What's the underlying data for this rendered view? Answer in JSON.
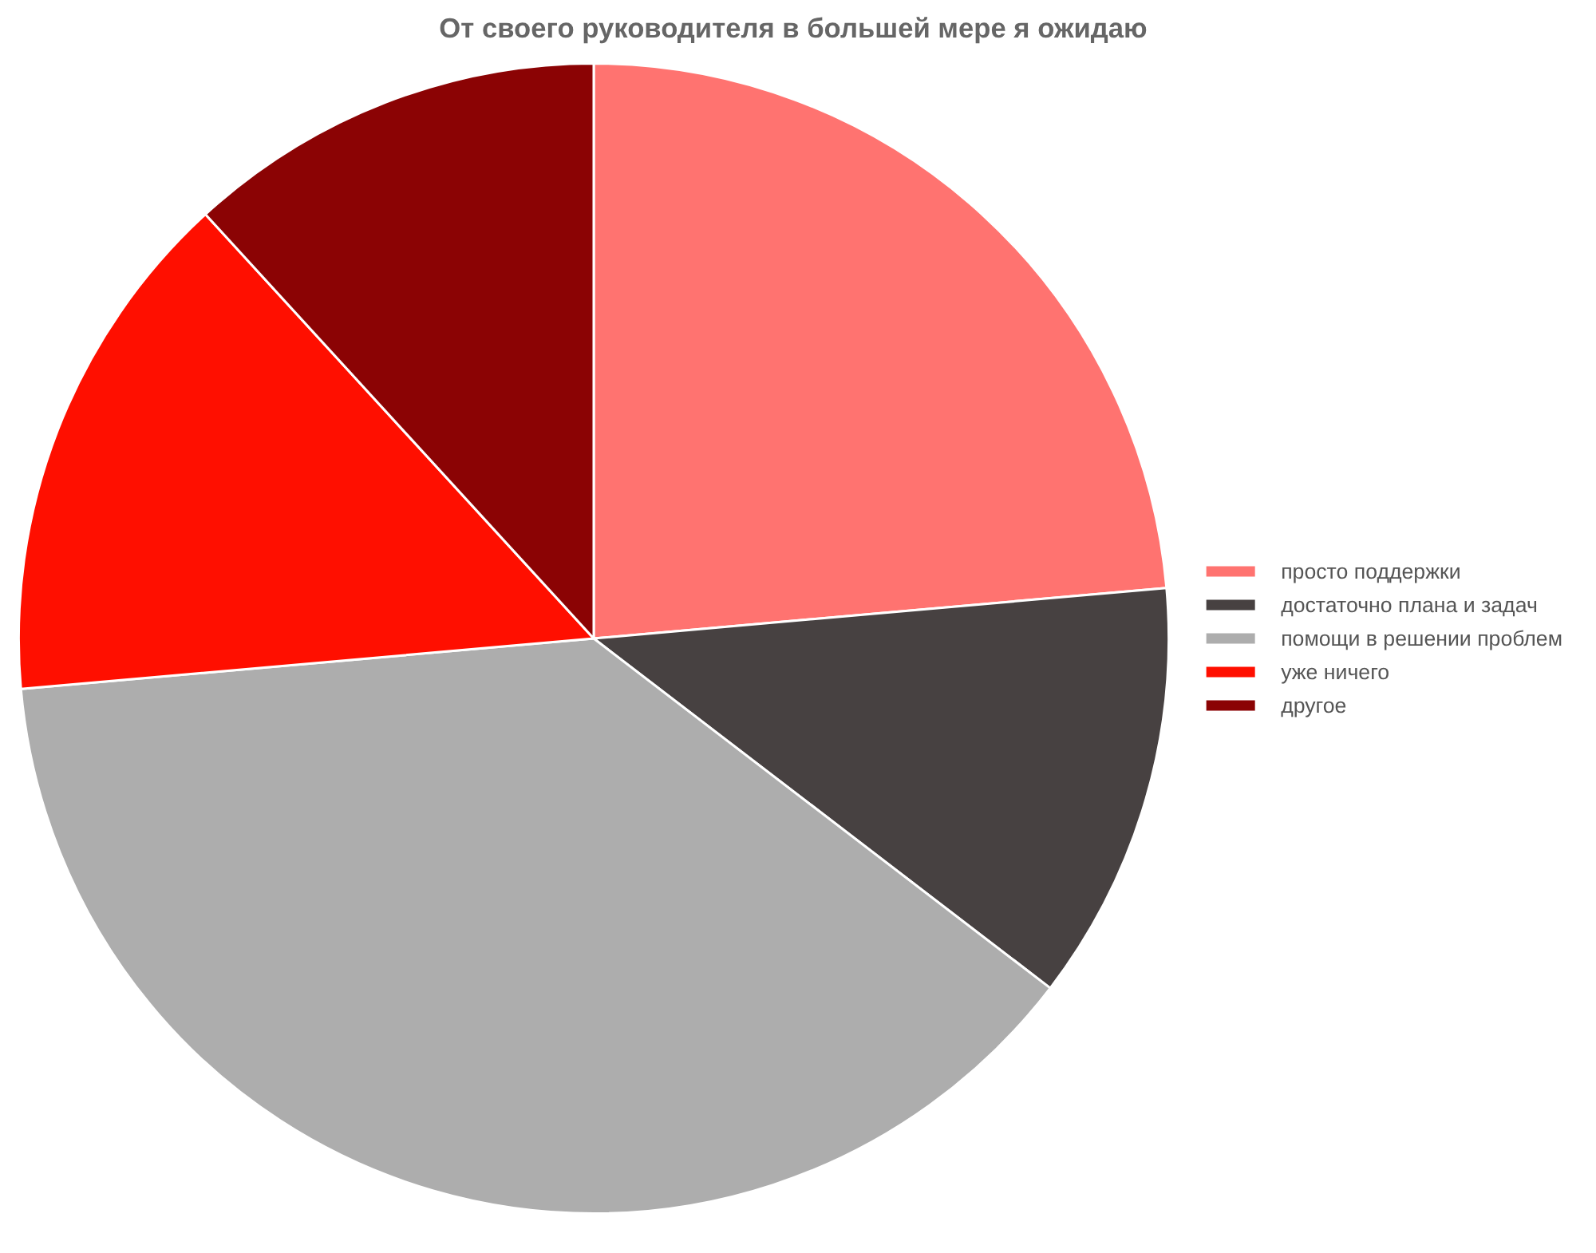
{
  "chart_data": {
    "type": "pie",
    "title": "От своего руководителя в большей мере я ожидаю",
    "categories": [
      "просто поддержки",
      "достаточно плана и задач",
      "помощи в решении проблем",
      "уже ничего",
      "другое"
    ],
    "values": [
      23.6,
      11.8,
      38.2,
      14.6,
      11.8
    ],
    "colors": [
      "#ff7370",
      "#474141",
      "#adadad",
      "#ff0f00",
      "#8b0304"
    ],
    "legend": "right"
  }
}
